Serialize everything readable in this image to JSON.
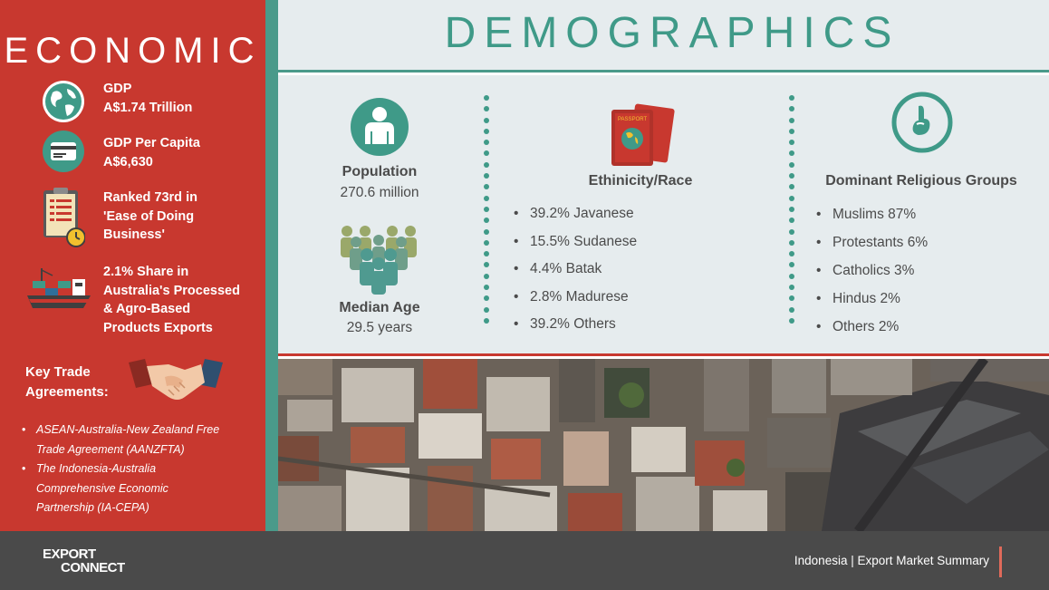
{
  "economic": {
    "title": "ECONOMIC",
    "items": [
      {
        "icon": "globe-icon",
        "line1": "GDP",
        "line2": "A$1.74 Trillion"
      },
      {
        "icon": "credit-card-icon",
        "line1": "GDP Per Capita",
        "line2": "A$6,630"
      },
      {
        "icon": "clipboard-clock-icon",
        "line1": "Ranked 73rd in",
        "line2": "'Ease of Doing",
        "line3": "Business'"
      },
      {
        "icon": "cargo-ship-icon",
        "line1": "2.1% Share in",
        "line2": "Australia's Processed",
        "line3": "& Agro-Based",
        "line4": "Products Exports"
      }
    ],
    "key_trade": {
      "title_line1": "Key Trade",
      "title_line2": "Agreements:",
      "icon": "handshake-icon",
      "agreements": [
        {
          "line1": "ASEAN-Australia-New Zealand Free",
          "line2": "Trade Agreement (AANZFTA)"
        },
        {
          "line1": "The Indonesia-Australia",
          "line2": "Comprehensive Economic",
          "line3": "Partnership (IA-CEPA)"
        }
      ]
    }
  },
  "demographics": {
    "title": "DEMOGRAPHICS",
    "population": {
      "label": "Population",
      "value": "270.6 million",
      "icon": "person-icon"
    },
    "median_age": {
      "label": "Median Age",
      "value": "29.5 years",
      "icon": "crowd-icon"
    },
    "ethnicity": {
      "title": "Ethinicity/Race",
      "icon": "passport-icon",
      "items": [
        "39.2% Javanese",
        "15.5% Sudanese",
        "4.4% Batak",
        "2.8% Madurese",
        "39.2% Others"
      ]
    },
    "religion": {
      "title": "Dominant Religious Groups",
      "icon": "praying-hand-icon",
      "items": [
        "Muslims 87%",
        "Protestants 6%",
        "Catholics 3%",
        "Hindus 2%",
        "Others 2%"
      ]
    }
  },
  "footer": {
    "logo_line1": "EXPORT",
    "logo_line2": "CONNECT",
    "text": "Indonesia | Export Market Summary"
  },
  "colors": {
    "red": "#c8382f",
    "teal": "#3f9a88",
    "panel": "#e6ecee",
    "footer": "#4a4a4a"
  }
}
